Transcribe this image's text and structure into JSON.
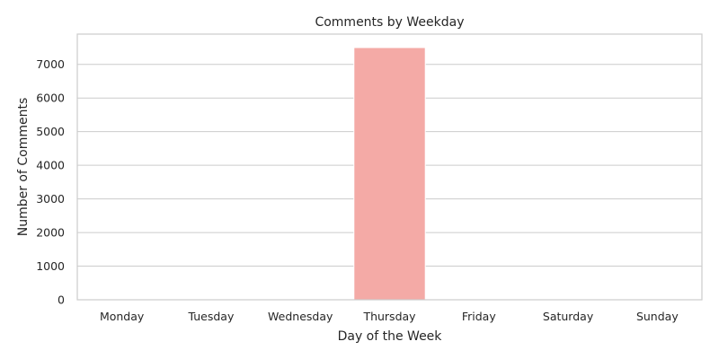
{
  "chart_data": {
    "type": "bar",
    "title": "Comments by Weekday",
    "xlabel": "Day of the Week",
    "ylabel": "Number of Comments",
    "categories": [
      "Monday",
      "Tuesday",
      "Wednesday",
      "Thursday",
      "Friday",
      "Saturday",
      "Sunday"
    ],
    "values": [
      0,
      0,
      0,
      7500,
      0,
      0,
      0
    ],
    "ylim": [
      0,
      7900
    ],
    "yticks": [
      0,
      1000,
      2000,
      3000,
      4000,
      5000,
      6000,
      7000
    ],
    "grid": true,
    "bar_color": "#f4aaa6"
  }
}
